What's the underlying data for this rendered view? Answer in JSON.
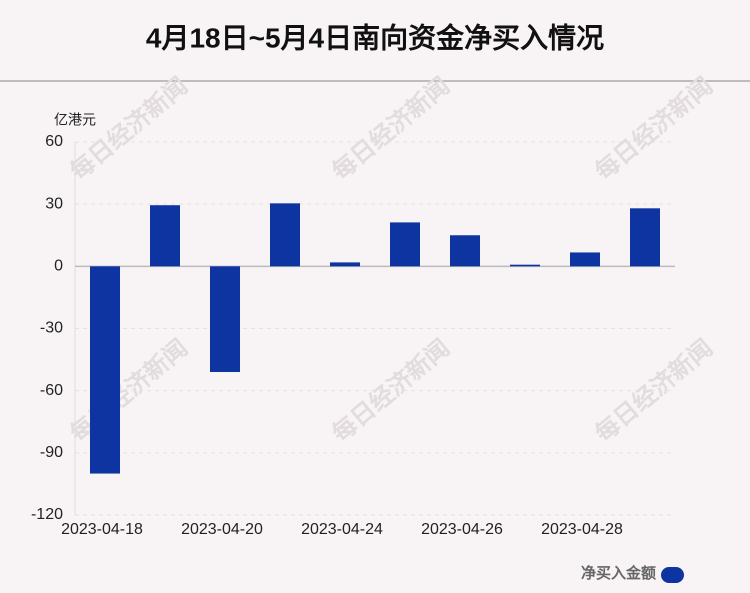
{
  "chart_data": {
    "type": "bar",
    "title": "4月18日~5月4日南向资金净买入情况",
    "y_unit": "亿港元",
    "watermark": "每日经济新闻",
    "categories": [
      "2023-04-18",
      null,
      "2023-04-20",
      null,
      "2023-04-24",
      null,
      "2023-04-26",
      null,
      "2023-04-28",
      null
    ],
    "series": [
      {
        "name": "净买入金额",
        "color": "#0d34a0",
        "values": [
          -100,
          29.5,
          -51,
          30.4,
          1.9,
          21.2,
          15,
          0.8,
          6.7,
          28
        ]
      }
    ],
    "ylim": [
      -120,
      60
    ],
    "yticks": [
      -120,
      -90,
      -60,
      -30,
      0,
      30,
      60
    ],
    "grid": true
  }
}
